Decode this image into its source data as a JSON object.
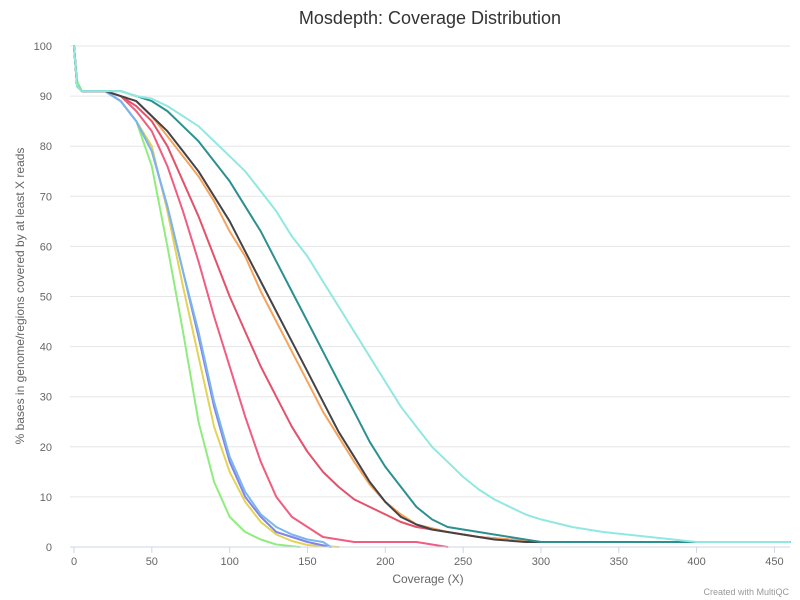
{
  "chart_data": {
    "type": "line",
    "title": "Mosdepth: Coverage Distribution",
    "xlabel": "Coverage (X)",
    "ylabel": "% bases in genome/regions covered by at least X reads",
    "xlim": [
      0,
      460
    ],
    "ylim": [
      0,
      100
    ],
    "x_ticks": [
      0,
      50,
      100,
      150,
      200,
      250,
      300,
      350,
      400,
      450
    ],
    "y_ticks": [
      0,
      10,
      20,
      30,
      40,
      50,
      60,
      70,
      80,
      90,
      100
    ],
    "grid": "horizontal",
    "credit": "Created with MultiQC",
    "series": [
      {
        "color": "#90ed7d",
        "points": [
          [
            0,
            100
          ],
          [
            2,
            93
          ],
          [
            5,
            91
          ],
          [
            20,
            91
          ],
          [
            30,
            89
          ],
          [
            40,
            85
          ],
          [
            50,
            76
          ],
          [
            60,
            60
          ],
          [
            70,
            43
          ],
          [
            80,
            25
          ],
          [
            90,
            13
          ],
          [
            100,
            6
          ],
          [
            110,
            3
          ],
          [
            120,
            1.5
          ],
          [
            130,
            0.5
          ],
          [
            145,
            0
          ]
        ]
      },
      {
        "color": "#e4d354",
        "points": [
          [
            0,
            100
          ],
          [
            2,
            92
          ],
          [
            5,
            91
          ],
          [
            20,
            91
          ],
          [
            30,
            89
          ],
          [
            40,
            85
          ],
          [
            50,
            80
          ],
          [
            60,
            67
          ],
          [
            70,
            52
          ],
          [
            80,
            38
          ],
          [
            90,
            24
          ],
          [
            100,
            15
          ],
          [
            110,
            9
          ],
          [
            120,
            5
          ],
          [
            130,
            2.5
          ],
          [
            140,
            1.2
          ],
          [
            150,
            0.4
          ],
          [
            170,
            0
          ]
        ]
      },
      {
        "color": "#8085e9",
        "points": [
          [
            0,
            100
          ],
          [
            2,
            92
          ],
          [
            5,
            91
          ],
          [
            20,
            91
          ],
          [
            30,
            89
          ],
          [
            40,
            85
          ],
          [
            50,
            79
          ],
          [
            60,
            68
          ],
          [
            70,
            55
          ],
          [
            80,
            42
          ],
          [
            90,
            28
          ],
          [
            100,
            17
          ],
          [
            110,
            10
          ],
          [
            120,
            6
          ],
          [
            130,
            3
          ],
          [
            140,
            2
          ],
          [
            150,
            1
          ],
          [
            165,
            0
          ]
        ]
      },
      {
        "color": "#7cb5ec",
        "points": [
          [
            0,
            100
          ],
          [
            2,
            92
          ],
          [
            5,
            91
          ],
          [
            20,
            91
          ],
          [
            30,
            89
          ],
          [
            40,
            85
          ],
          [
            50,
            79
          ],
          [
            60,
            68
          ],
          [
            70,
            55
          ],
          [
            80,
            43
          ],
          [
            90,
            29
          ],
          [
            100,
            18
          ],
          [
            110,
            11
          ],
          [
            120,
            6.5
          ],
          [
            130,
            4
          ],
          [
            140,
            2.5
          ],
          [
            150,
            1.5
          ],
          [
            160,
            1
          ],
          [
            165,
            0
          ]
        ]
      },
      {
        "color": "#f15c80",
        "points": [
          [
            0,
            100
          ],
          [
            2,
            92
          ],
          [
            5,
            91
          ],
          [
            20,
            91
          ],
          [
            30,
            90
          ],
          [
            40,
            87
          ],
          [
            50,
            83
          ],
          [
            60,
            76
          ],
          [
            70,
            67
          ],
          [
            80,
            57
          ],
          [
            90,
            46
          ],
          [
            100,
            36
          ],
          [
            110,
            26
          ],
          [
            120,
            17
          ],
          [
            130,
            10
          ],
          [
            140,
            6
          ],
          [
            150,
            4
          ],
          [
            160,
            2
          ],
          [
            180,
            1
          ],
          [
            220,
            1
          ],
          [
            240,
            0
          ]
        ]
      },
      {
        "color": "#e4516b",
        "points": [
          [
            0,
            100
          ],
          [
            2,
            92
          ],
          [
            5,
            91
          ],
          [
            20,
            91
          ],
          [
            30,
            90
          ],
          [
            40,
            88
          ],
          [
            50,
            85
          ],
          [
            60,
            80
          ],
          [
            70,
            73
          ],
          [
            80,
            66
          ],
          [
            90,
            58
          ],
          [
            100,
            50
          ],
          [
            110,
            43
          ],
          [
            120,
            36
          ],
          [
            130,
            30
          ],
          [
            140,
            24
          ],
          [
            150,
            19
          ],
          [
            160,
            15
          ],
          [
            170,
            12
          ],
          [
            180,
            9.5
          ],
          [
            190,
            8
          ],
          [
            200,
            6.5
          ],
          [
            210,
            5
          ],
          [
            220,
            4
          ],
          [
            240,
            3
          ],
          [
            260,
            2
          ],
          [
            280,
            1.5
          ],
          [
            300,
            1
          ],
          [
            380,
            1
          ],
          [
            460,
            1
          ]
        ]
      },
      {
        "color": "#f7a35c",
        "points": [
          [
            0,
            100
          ],
          [
            2,
            92
          ],
          [
            5,
            91
          ],
          [
            20,
            91
          ],
          [
            30,
            90
          ],
          [
            40,
            89
          ],
          [
            50,
            86
          ],
          [
            60,
            82
          ],
          [
            70,
            78
          ],
          [
            80,
            74
          ],
          [
            90,
            69
          ],
          [
            100,
            63
          ],
          [
            110,
            58
          ],
          [
            120,
            51
          ],
          [
            130,
            45
          ],
          [
            140,
            39
          ],
          [
            150,
            33
          ],
          [
            160,
            27
          ],
          [
            170,
            22
          ],
          [
            180,
            17
          ],
          [
            190,
            12.5
          ],
          [
            200,
            9
          ],
          [
            210,
            6.5
          ],
          [
            220,
            4.5
          ],
          [
            240,
            3
          ],
          [
            260,
            2
          ],
          [
            300,
            1
          ],
          [
            460,
            1
          ]
        ]
      },
      {
        "color": "#434348",
        "points": [
          [
            0,
            100
          ],
          [
            2,
            92
          ],
          [
            5,
            91
          ],
          [
            20,
            91
          ],
          [
            30,
            90
          ],
          [
            40,
            89
          ],
          [
            50,
            86
          ],
          [
            60,
            83
          ],
          [
            70,
            79
          ],
          [
            80,
            75
          ],
          [
            90,
            70
          ],
          [
            100,
            65
          ],
          [
            110,
            59
          ],
          [
            120,
            53
          ],
          [
            130,
            47
          ],
          [
            140,
            41
          ],
          [
            150,
            35
          ],
          [
            160,
            29
          ],
          [
            170,
            23
          ],
          [
            180,
            18
          ],
          [
            190,
            13
          ],
          [
            200,
            9
          ],
          [
            210,
            6
          ],
          [
            220,
            4.5
          ],
          [
            230,
            3.5
          ],
          [
            250,
            2.5
          ],
          [
            270,
            1.5
          ],
          [
            290,
            1
          ],
          [
            460,
            1
          ]
        ]
      },
      {
        "color": "#2b908f",
        "points": [
          [
            0,
            100
          ],
          [
            2,
            92
          ],
          [
            5,
            91
          ],
          [
            20,
            91
          ],
          [
            30,
            91
          ],
          [
            40,
            90
          ],
          [
            50,
            89
          ],
          [
            60,
            87
          ],
          [
            70,
            84
          ],
          [
            80,
            81
          ],
          [
            90,
            77
          ],
          [
            100,
            73
          ],
          [
            110,
            68
          ],
          [
            120,
            63
          ],
          [
            130,
            57
          ],
          [
            140,
            51
          ],
          [
            150,
            45
          ],
          [
            160,
            39
          ],
          [
            170,
            33
          ],
          [
            180,
            27
          ],
          [
            190,
            21
          ],
          [
            200,
            16
          ],
          [
            210,
            12
          ],
          [
            220,
            8
          ],
          [
            230,
            5.5
          ],
          [
            240,
            4
          ],
          [
            260,
            3
          ],
          [
            280,
            2
          ],
          [
            300,
            1
          ],
          [
            460,
            1
          ]
        ]
      },
      {
        "color": "#91e8e1",
        "points": [
          [
            0,
            100
          ],
          [
            2,
            92
          ],
          [
            5,
            91
          ],
          [
            20,
            91
          ],
          [
            30,
            91
          ],
          [
            40,
            90
          ],
          [
            50,
            89.5
          ],
          [
            60,
            88
          ],
          [
            70,
            86
          ],
          [
            80,
            84
          ],
          [
            90,
            81
          ],
          [
            100,
            78
          ],
          [
            110,
            75
          ],
          [
            120,
            71
          ],
          [
            130,
            67
          ],
          [
            140,
            62
          ],
          [
            150,
            58
          ],
          [
            160,
            53
          ],
          [
            170,
            48
          ],
          [
            180,
            43
          ],
          [
            190,
            38
          ],
          [
            200,
            33
          ],
          [
            210,
            28
          ],
          [
            220,
            24
          ],
          [
            230,
            20
          ],
          [
            240,
            17
          ],
          [
            250,
            14
          ],
          [
            260,
            11.5
          ],
          [
            270,
            9.5
          ],
          [
            280,
            8
          ],
          [
            290,
            6.5
          ],
          [
            300,
            5.5
          ],
          [
            320,
            4
          ],
          [
            340,
            3
          ],
          [
            370,
            2
          ],
          [
            400,
            1
          ],
          [
            460,
            1
          ]
        ]
      }
    ]
  }
}
